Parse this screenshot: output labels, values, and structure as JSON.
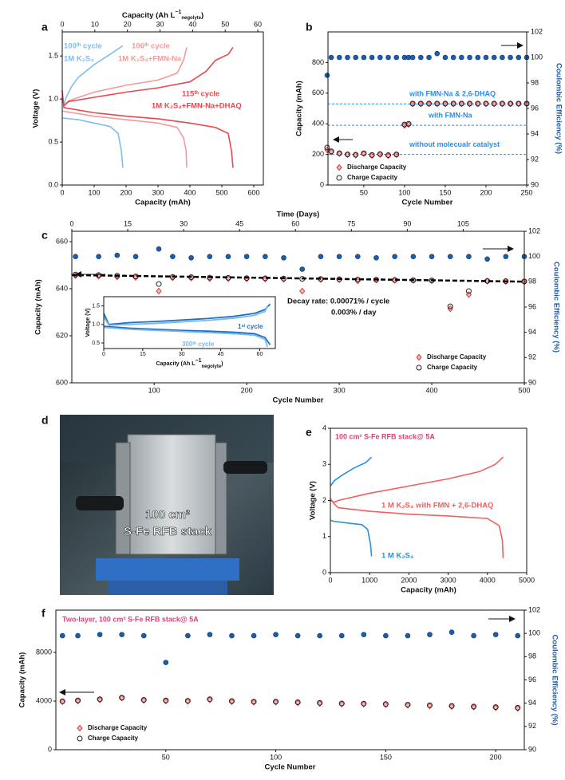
{
  "chart_data": [
    {
      "panel": "a",
      "type": "line",
      "xlabel": "Capacity (mAh)",
      "ylabel": "Voltage (V)",
      "x2label": {
        "text": "Capacity (Ah L",
        "sup": "−1",
        "sub": "negolyte",
        "end": ")"
      },
      "xlim": [
        0,
        630
      ],
      "xticks": [
        0,
        100,
        200,
        300,
        400,
        500,
        600
      ],
      "x2lim": [
        0,
        61.7
      ],
      "x2ticks": [
        0,
        10,
        20,
        30,
        40,
        50,
        60
      ],
      "ylim": [
        0,
        1.78
      ],
      "yticks": [
        {
          "value": 0,
          "label": "0.0"
        },
        {
          "value": 0.5,
          "label": "0.5"
        },
        {
          "value": 1,
          "label": "1.0"
        },
        {
          "value": 1.5,
          "label": "1.5"
        }
      ],
      "series": [
        {
          "color": "#7fbcef",
          "x": [
            5,
            10,
            30,
            50,
            100,
            150,
            190
          ],
          "values": [
            0.92,
            1.0,
            1.15,
            1.25,
            1.4,
            1.52,
            1.62
          ]
        },
        {
          "color": "#7fbcef",
          "x": [
            0,
            50,
            100,
            150,
            175,
            185,
            190
          ],
          "values": [
            0.78,
            0.76,
            0.72,
            0.68,
            0.6,
            0.4,
            0.2
          ]
        },
        {
          "color": "#f29a9a",
          "x": [
            5,
            20,
            100,
            200,
            300,
            360,
            380,
            390
          ],
          "values": [
            0.92,
            0.98,
            1.08,
            1.16,
            1.22,
            1.3,
            1.45,
            1.6
          ]
        },
        {
          "color": "#f29a9a",
          "x": [
            0,
            100,
            200,
            300,
            360,
            380,
            388,
            390
          ],
          "values": [
            0.86,
            0.8,
            0.76,
            0.72,
            0.67,
            0.55,
            0.4,
            0.2
          ]
        },
        {
          "color": "#e8474c",
          "x": [
            5,
            20,
            100,
            200,
            300,
            400,
            450,
            480,
            520,
            535
          ],
          "values": [
            0.92,
            0.97,
            1.02,
            1.08,
            1.13,
            1.2,
            1.32,
            1.45,
            1.52,
            1.6
          ]
        },
        {
          "color": "#e8474c",
          "x": [
            0,
            5,
            100,
            200,
            300,
            400,
            480,
            520,
            530,
            535
          ],
          "values": [
            1.1,
            0.9,
            0.84,
            0.8,
            0.77,
            0.72,
            0.67,
            0.6,
            0.4,
            0.2
          ]
        }
      ],
      "annotations": [
        {
          "text": "100ᵗʰ cycle",
          "color": "#7fbcef"
        },
        {
          "text": "1M K₂S₄",
          "color": "#7fbcef"
        },
        {
          "text": "106ᵗʰ cycle",
          "color": "#f29a9a"
        },
        {
          "text": "1M K₂S₄+FMN-Na",
          "color": "#f29a9a"
        },
        {
          "text": "115ᵗʰ cycle",
          "color": "#e8474c"
        },
        {
          "text": "1M K₂S₄+FMN-Na+DHAQ",
          "color": "#e8474c"
        }
      ]
    },
    {
      "panel": "b",
      "type": "scatter",
      "xlabel": "Cycle Number",
      "ylabel": "Capacity (mAh)",
      "y2label": "Coulombic Efficiency (%)",
      "xlim": [
        6,
        250
      ],
      "xticks": [
        50,
        100,
        150,
        200,
        250
      ],
      "ylim": [
        0,
        1000
      ],
      "yticks": [
        0,
        200,
        400,
        600,
        800
      ],
      "y2lim": [
        90,
        102
      ],
      "y2ticks": [
        90,
        92,
        94,
        96,
        98,
        100,
        102
      ],
      "x": [
        5,
        10,
        20,
        30,
        40,
        50,
        60,
        70,
        80,
        90,
        100,
        105,
        110,
        120,
        130,
        140,
        150,
        160,
        170,
        180,
        190,
        200,
        210,
        220,
        230,
        240,
        250
      ],
      "series": [
        {
          "name": "Discharge Capacity",
          "marker": "diamond",
          "color": "#e03c3c",
          "values": [
            230,
            215,
            205,
            198,
            195,
            205,
            193,
            200,
            192,
            198,
            390,
            395,
            530,
            530,
            530,
            530,
            530,
            530,
            530,
            530,
            530,
            530,
            530,
            530,
            530,
            530,
            530
          ]
        },
        {
          "name": "Charge Capacity",
          "marker": "open-circle",
          "color": "#222222",
          "values": [
            245,
            220,
            208,
            200,
            198,
            207,
            196,
            202,
            195,
            200,
            395,
            400,
            532,
            532,
            532,
            532,
            532,
            532,
            532,
            532,
            532,
            532,
            532,
            532,
            532,
            532,
            532
          ]
        },
        {
          "axis": "y2",
          "marker": "circle",
          "color": "#1f5ba8",
          "values": [
            98.6,
            100,
            100,
            100,
            100,
            100,
            100,
            100,
            100,
            100,
            100,
            100,
            100,
            100,
            100,
            100.3,
            100,
            100,
            100,
            100,
            100,
            100,
            100,
            100,
            100,
            100,
            100
          ]
        }
      ],
      "ref_line_color": "#1e90ff",
      "ref_lines": [
        {
          "value": 530,
          "label": "with FMN-Na & 2,6-DHAQ"
        },
        {
          "value": 390,
          "label": "with FMN-Na"
        },
        {
          "value": 200,
          "label": "without molecualr catalyst"
        }
      ],
      "legend": "lower left"
    },
    {
      "panel": "c",
      "type": "scatter",
      "xlabel": "Cycle Number",
      "ylabel": "Capacity (mAh)",
      "y2label": "Coulombic Efficiency (%)",
      "x2label": "Time (Days)",
      "xlim": [
        11,
        500
      ],
      "xticks": [
        100,
        200,
        300,
        400,
        500
      ],
      "x2lim": [
        0,
        121.4
      ],
      "x2ticks": [
        0,
        15,
        30,
        45,
        60,
        75,
        90,
        105
      ],
      "ylim": [
        600,
        664.4
      ],
      "yticks": [
        600,
        620,
        640,
        660
      ],
      "y2lim": [
        90,
        102
      ],
      "y2ticks": [
        90,
        92,
        94,
        96,
        98,
        100,
        102
      ],
      "x": [
        15,
        40,
        60,
        80,
        105,
        120,
        140,
        160,
        180,
        200,
        220,
        240,
        260,
        280,
        300,
        320,
        340,
        360,
        380,
        400,
        420,
        440,
        460,
        480,
        500
      ],
      "series": [
        {
          "name": "Discharge Capacity",
          "marker": "diamond",
          "color": "#e03c3c",
          "values": [
            645.5,
            645.3,
            645,
            644.8,
            639,
            644.6,
            644.5,
            644.3,
            644.3,
            644.2,
            644.1,
            644,
            639,
            643.9,
            643.8,
            643.3,
            643.7,
            643.6,
            643.5,
            643.4,
            631.5,
            637.5,
            643.2,
            643.1,
            643
          ]
        },
        {
          "name": "Charge Capacity",
          "marker": "open-circle",
          "color": "#222222",
          "values": [
            646,
            645.8,
            645.5,
            645.2,
            642,
            645,
            644.9,
            644.7,
            644.6,
            644.5,
            644.4,
            644.3,
            644.2,
            644.1,
            644,
            643.9,
            643.8,
            643.7,
            643.6,
            643.5,
            632.5,
            639,
            643.3,
            643.2,
            643.1
          ]
        },
        {
          "axis": "y2",
          "marker": "circle",
          "color": "#1f5ba8",
          "values": [
            100,
            100,
            100.1,
            100,
            100.6,
            100,
            99.9,
            100,
            100,
            100,
            100,
            99.9,
            99,
            100,
            100,
            100,
            99.9,
            100,
            100,
            100,
            100,
            100,
            99.8,
            100,
            100
          ]
        }
      ],
      "fit": {
        "x": [
          11,
          500
        ],
        "values": [
          645.8,
          643
        ]
      },
      "annotations": [
        {
          "text": "Decay rate: 0.00071% / cycle",
          "color": "#111111"
        },
        {
          "text": "0.003% / day",
          "color": "#111111"
        }
      ],
      "legend": "lower right"
    },
    {
      "type": "line",
      "ylabel": "Voltage (V)",
      "xlabel": {
        "text": "Capacity (Ah L",
        "sup": "−1",
        "sub": "negolyte",
        "end": ")"
      },
      "xlim": [
        0,
        66
      ],
      "xticks": [
        0,
        15,
        30,
        45,
        60
      ],
      "ylim": [
        0.35,
        1.75
      ],
      "yticks": [
        0.5,
        {
          "value": 1,
          "label": "1.0"
        },
        1.5
      ],
      "series": [
        {
          "color": "#1f6fc0",
          "x": [
            0,
            2,
            10,
            20,
            30,
            40,
            50,
            58,
            62,
            64
          ],
          "values": [
            1.3,
            1.0,
            1.05,
            1.08,
            1.12,
            1.16,
            1.22,
            1.3,
            1.4,
            1.55
          ]
        },
        {
          "color": "#1f6fc0",
          "x": [
            0,
            10,
            20,
            30,
            40,
            50,
            58,
            62,
            64
          ],
          "values": [
            0.95,
            0.9,
            0.87,
            0.84,
            0.82,
            0.79,
            0.75,
            0.65,
            0.45
          ]
        },
        {
          "color": "#7ab8ef",
          "x": [
            0,
            2,
            10,
            20,
            30,
            40,
            50,
            58,
            62,
            63
          ],
          "values": [
            1.2,
            0.98,
            1.0,
            1.03,
            1.07,
            1.11,
            1.17,
            1.25,
            1.35,
            1.5
          ]
        },
        {
          "color": "#7ab8ef",
          "x": [
            0,
            10,
            20,
            30,
            40,
            50,
            58,
            62,
            63
          ],
          "values": [
            0.92,
            0.87,
            0.84,
            0.81,
            0.78,
            0.75,
            0.71,
            0.6,
            0.4
          ]
        }
      ],
      "annotations": [
        {
          "text": "1ˢᵗ cycle",
          "color": "#1f6fc0"
        },
        {
          "text": "300ᵗʰ cycle",
          "color": "#7ab8ef"
        }
      ]
    },
    {
      "panel": "e",
      "type": "line",
      "title": "100 cm² S-Fe RFB stack@ 5A",
      "title_color": "#e0407a",
      "xlabel": "Capacity (mAh)",
      "ylabel": "Voltage (V)",
      "xlim": [
        0,
        5000
      ],
      "xticks": [
        0,
        1000,
        2000,
        3000,
        4000,
        5000
      ],
      "ylim": [
        0,
        4
      ],
      "yticks": [
        0,
        1,
        2,
        3,
        4
      ],
      "series": [
        {
          "color": "#2a8fe0",
          "x": [
            0,
            100,
            300,
            600,
            900,
            1050
          ],
          "values": [
            2.4,
            2.55,
            2.7,
            2.9,
            3.05,
            3.2
          ]
        },
        {
          "color": "#2a8fe0",
          "x": [
            0,
            100,
            400,
            800,
            950,
            1020,
            1050
          ],
          "values": [
            1.45,
            1.42,
            1.38,
            1.33,
            1.2,
            0.8,
            0.45
          ]
        },
        {
          "color": "#f06060",
          "x": [
            0,
            100,
            200,
            1000,
            2000,
            3000,
            3800,
            4200,
            4400
          ],
          "values": [
            2.0,
            1.95,
            2.0,
            2.2,
            2.4,
            2.6,
            2.8,
            3.0,
            3.2
          ]
        },
        {
          "color": "#f06060",
          "x": [
            0,
            100,
            200,
            1000,
            2000,
            3000,
            4000,
            4300,
            4380,
            4400
          ],
          "values": [
            2.05,
            1.9,
            1.8,
            1.7,
            1.62,
            1.57,
            1.5,
            1.3,
            0.9,
            0.4
          ]
        }
      ],
      "annotations": [
        {
          "text": "1 M K₂S₄ with FMN + 2,6-DHAQ",
          "color": "#f06060"
        },
        {
          "text": "1 M K₂S₄",
          "color": "#2a8fe0"
        }
      ]
    },
    {
      "panel": "f",
      "type": "scatter",
      "title": "Two-layer, 100 cm² S-Fe RFB stack@ 5A",
      "title_color": "#e0407a",
      "xlabel": "Cycle Number",
      "ylabel": "Capacity (mAh)",
      "y2label": "Coulombic Efficiency (%)",
      "xlim": [
        0,
        213
      ],
      "xticks": [
        50,
        100,
        150,
        200
      ],
      "ylim": [
        0,
        11475
      ],
      "yticks": [
        0,
        4000,
        8000
      ],
      "y2lim": [
        90,
        102
      ],
      "y2ticks": [
        90,
        92,
        94,
        96,
        98,
        100,
        102
      ],
      "x": [
        3,
        10,
        20,
        30,
        40,
        50,
        60,
        70,
        80,
        90,
        100,
        110,
        120,
        130,
        140,
        150,
        160,
        170,
        180,
        190,
        200,
        210
      ],
      "series": [
        {
          "name": "Discharge Capacity",
          "marker": "diamond",
          "color": "#e03c3c",
          "values": [
            3950,
            4000,
            4100,
            4250,
            4050,
            4000,
            3980,
            4100,
            3950,
            3900,
            3900,
            3850,
            3800,
            3750,
            3750,
            3700,
            3650,
            3600,
            3550,
            3500,
            3450,
            3400
          ]
        },
        {
          "name": "Charge Capacity",
          "marker": "open-circle",
          "color": "#222222",
          "values": [
            3980,
            4050,
            4150,
            4280,
            4100,
            4050,
            4020,
            4150,
            4000,
            3950,
            3950,
            3900,
            3850,
            3800,
            3790,
            3750,
            3700,
            3650,
            3600,
            3550,
            3500,
            3450
          ]
        },
        {
          "axis": "y2",
          "marker": "circle",
          "color": "#1f5ba8",
          "values": [
            99.8,
            99.8,
            99.9,
            99.9,
            99.8,
            97.5,
            99.8,
            99.9,
            99.8,
            99.8,
            99.9,
            99.8,
            99.8,
            99.8,
            99.9,
            99.8,
            99.8,
            99.9,
            100.1,
            99.8,
            99.9,
            99.8
          ]
        }
      ],
      "legend": "lower left"
    }
  ],
  "photo": {
    "panel": "d",
    "caption": [
      "100 cm²",
      "S-Fe RFB stack"
    ]
  }
}
